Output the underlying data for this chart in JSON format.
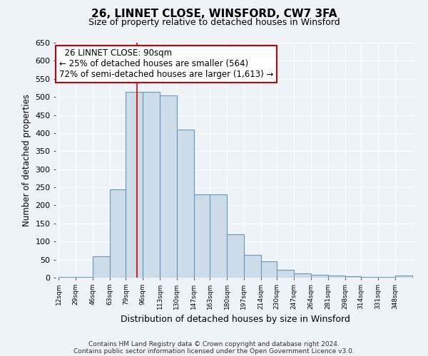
{
  "title": "26, LINNET CLOSE, WINSFORD, CW7 3FA",
  "subtitle": "Size of property relative to detached houses in Winsford",
  "xlabel": "Distribution of detached houses by size in Winsford",
  "ylabel": "Number of detached properties",
  "footer_line1": "Contains HM Land Registry data © Crown copyright and database right 2024.",
  "footer_line2": "Contains public sector information licensed under the Open Government Licence v3.0.",
  "annotation_title": "26 LINNET CLOSE: 90sqm",
  "annotation_line1": "← 25% of detached houses are smaller (564)",
  "annotation_line2": "72% of semi-detached houses are larger (1,613) →",
  "bar_color": "#ccdce8",
  "bar_edge_color": "#6699bb",
  "vline_color": "#cc0000",
  "vline_x": 90,
  "bins": [
    12,
    29,
    46,
    63,
    79,
    96,
    113,
    130,
    147,
    163,
    180,
    197,
    214,
    230,
    247,
    264,
    281,
    298,
    314,
    331,
    348,
    365
  ],
  "heights": [
    2,
    2,
    60,
    245,
    515,
    515,
    505,
    410,
    230,
    230,
    120,
    63,
    45,
    22,
    12,
    8,
    5,
    4,
    1,
    1,
    6
  ],
  "ylim": [
    0,
    650
  ],
  "yticks": [
    0,
    50,
    100,
    150,
    200,
    250,
    300,
    350,
    400,
    450,
    500,
    550,
    600,
    650
  ],
  "bg_color": "#eef3f8",
  "grid_color": "#ffffff",
  "annotation_box_color": "#ffffff",
  "annotation_box_edge": "#cc0000",
  "title_fontsize": 11,
  "subtitle_fontsize": 9
}
